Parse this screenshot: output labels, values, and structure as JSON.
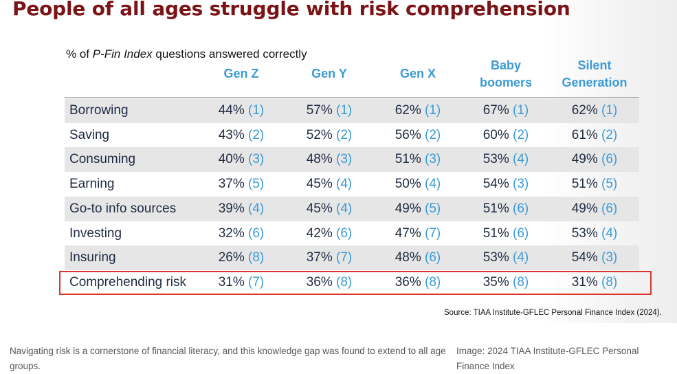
{
  "title": "People of all ages struggle with risk comprehension",
  "subtitle": {
    "prefix": "% of ",
    "italic": "P-Fin Index",
    "suffix": " questions answered correctly"
  },
  "colors": {
    "title": "#7b1417",
    "header": "#3a9bd5",
    "rank": "#3a9bd5",
    "row_shade": "#e6e6e6",
    "highlight": "#d9352f"
  },
  "chart_data": {
    "type": "table",
    "columns": [
      [
        "Gen Z"
      ],
      [
        "Gen Y"
      ],
      [
        "Gen X"
      ],
      [
        "Baby",
        "boomers"
      ],
      [
        "Silent",
        "Generation"
      ]
    ],
    "rows": [
      {
        "category": "Borrowing",
        "values": [
          [
            "44%",
            "(1)"
          ],
          [
            "57%",
            "(1)"
          ],
          [
            "62%",
            "(1)"
          ],
          [
            "67%",
            "(1)"
          ],
          [
            "62%",
            "(1)"
          ]
        ]
      },
      {
        "category": "Saving",
        "values": [
          [
            "43%",
            "(2)"
          ],
          [
            "52%",
            "(2)"
          ],
          [
            "56%",
            "(2)"
          ],
          [
            "60%",
            "(2)"
          ],
          [
            "61%",
            "(2)"
          ]
        ]
      },
      {
        "category": "Consuming",
        "values": [
          [
            "40%",
            "(3)"
          ],
          [
            "48%",
            "(3)"
          ],
          [
            "51%",
            "(3)"
          ],
          [
            "53%",
            "(4)"
          ],
          [
            "49%",
            "(6)"
          ]
        ]
      },
      {
        "category": "Earning",
        "values": [
          [
            "37%",
            "(5)"
          ],
          [
            "45%",
            "(4)"
          ],
          [
            "50%",
            "(4)"
          ],
          [
            "54%",
            "(3)"
          ],
          [
            "51%",
            "(5)"
          ]
        ]
      },
      {
        "category": "Go-to info sources",
        "values": [
          [
            "39%",
            "(4)"
          ],
          [
            "45%",
            "(4)"
          ],
          [
            "49%",
            "(5)"
          ],
          [
            "51%",
            "(6)"
          ],
          [
            "49%",
            "(6)"
          ]
        ]
      },
      {
        "category": "Investing",
        "values": [
          [
            "32%",
            "(6)"
          ],
          [
            "42%",
            "(6)"
          ],
          [
            "47%",
            "(7)"
          ],
          [
            "51%",
            "(6)"
          ],
          [
            "53%",
            "(4)"
          ]
        ]
      },
      {
        "category": "Insuring",
        "values": [
          [
            "26%",
            "(8)"
          ],
          [
            "37%",
            "(7)"
          ],
          [
            "48%",
            "(6)"
          ],
          [
            "53%",
            "(4)"
          ],
          [
            "54%",
            "(3)"
          ]
        ]
      },
      {
        "category": "Comprehending risk",
        "values": [
          [
            "31%",
            "(7)"
          ],
          [
            "36%",
            "(8)"
          ],
          [
            "36%",
            "(8)"
          ],
          [
            "35%",
            "(8)"
          ],
          [
            "31%",
            "(8)"
          ]
        ],
        "highlighted": true
      }
    ]
  },
  "source": "Source: TIAA Institute-GFLEC Personal Finance Index (2024).",
  "caption": "Navigating risk is a cornerstone of financial literacy, and this knowledge gap was found to extend to all age groups.",
  "credit": "Image: 2024 TIAA Institute-GFLEC Personal Finance Index"
}
